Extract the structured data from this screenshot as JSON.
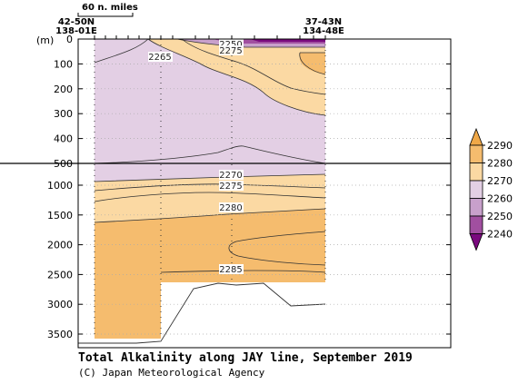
{
  "chart_data": {
    "type": "section-contour",
    "title": "Total Alkalinity along JAY line, September 2019",
    "credit": "(C) Japan Meteorological Agency",
    "ylabel_unit": "(m)",
    "scale_label": "60 n. miles",
    "stations": [
      {
        "lat": "42-50N",
        "lon": "138-01E"
      },
      {
        "lat": "37-43N",
        "lon": "134-48E"
      }
    ],
    "y_ticks_upper": [
      0,
      100,
      200,
      300,
      400,
      500
    ],
    "y_ticks_lower": [
      1000,
      1500,
      2000,
      2500,
      3000,
      3500
    ],
    "ylim": [
      0,
      3800
    ],
    "axis_break_depth": 500,
    "contour_levels": [
      2240,
      2250,
      2260,
      2270,
      2280,
      2290
    ],
    "colorbar": {
      "levels": [
        "2240",
        "2250",
        "2260",
        "2270",
        "2280",
        "2290"
      ],
      "colors": [
        "#7a0a7e",
        "#a14fa0",
        "#c8a0cb",
        "#e3cfe4",
        "#fbd9a3",
        "#f5bc6e",
        "#f0a848"
      ]
    },
    "contour_labels": [
      {
        "value": "2250",
        "depth": 0,
        "pos": 0.57
      },
      {
        "value": "2275",
        "depth": 20,
        "pos": 0.57
      },
      {
        "value": "2265",
        "depth": 75,
        "pos": 0.28
      },
      {
        "value": "2270",
        "depth": 560,
        "pos": 0.57
      },
      {
        "value": "2275",
        "depth": 830,
        "pos": 0.57
      },
      {
        "value": "2280",
        "depth": 1250,
        "pos": 0.57
      },
      {
        "value": "2285",
        "depth": 2450,
        "pos": 0.57
      }
    ]
  }
}
